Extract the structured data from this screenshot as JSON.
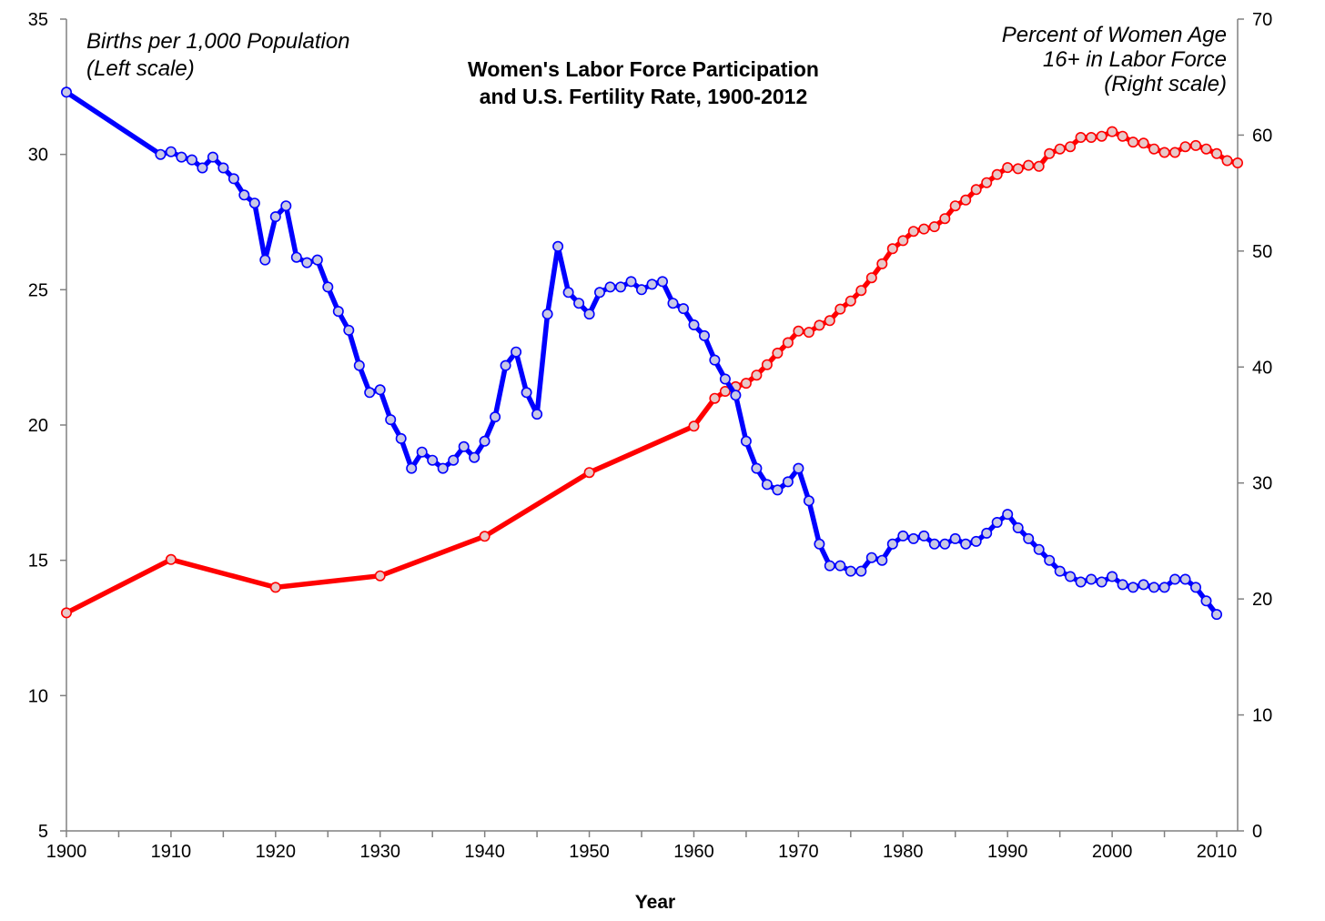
{
  "chart_data": {
    "type": "line",
    "title": "Women's Labor Force Participation\nand U.S. Fertility Rate, 1900-2012",
    "xlabel": "Year",
    "ylabel_left": "Births per 1,000 Population\n(Left scale)",
    "ylabel_right": "Percent of Women Age\n16+ in Labor Force\n(Right scale)",
    "xlim": [
      1900,
      2012
    ],
    "ylim_left": [
      5,
      35
    ],
    "ylim_right": [
      0,
      70
    ],
    "x_ticks": [
      1900,
      1910,
      1920,
      1930,
      1940,
      1950,
      1960,
      1970,
      1980,
      1990,
      2000,
      2010
    ],
    "y_left_ticks": [
      5,
      10,
      15,
      20,
      25,
      30,
      35
    ],
    "y_right_ticks": [
      0,
      10,
      20,
      30,
      40,
      50,
      60,
      70
    ],
    "grid": false,
    "series": [
      {
        "name": "Births per 1,000 Population",
        "axis": "left",
        "color": "#0000ff",
        "marker_fill": "#c8c8e6",
        "x": [
          1900,
          1909,
          1910,
          1911,
          1912,
          1913,
          1914,
          1915,
          1916,
          1917,
          1918,
          1919,
          1920,
          1921,
          1922,
          1923,
          1924,
          1925,
          1926,
          1927,
          1928,
          1929,
          1930,
          1931,
          1932,
          1933,
          1934,
          1935,
          1936,
          1937,
          1938,
          1939,
          1940,
          1941,
          1942,
          1943,
          1944,
          1945,
          1946,
          1947,
          1948,
          1949,
          1950,
          1951,
          1952,
          1953,
          1954,
          1955,
          1956,
          1957,
          1958,
          1959,
          1960,
          1961,
          1962,
          1963,
          1964,
          1965,
          1966,
          1967,
          1968,
          1969,
          1970,
          1971,
          1972,
          1973,
          1974,
          1975,
          1976,
          1977,
          1978,
          1979,
          1980,
          1981,
          1982,
          1983,
          1984,
          1985,
          1986,
          1987,
          1988,
          1989,
          1990,
          1991,
          1992,
          1993,
          1994,
          1995,
          1996,
          1997,
          1998,
          1999,
          2000,
          2001,
          2002,
          2003,
          2004,
          2005,
          2006,
          2007,
          2008,
          2009,
          2010
        ],
        "values": [
          32.3,
          30.0,
          30.1,
          29.9,
          29.8,
          29.5,
          29.9,
          29.5,
          29.1,
          28.5,
          28.2,
          26.1,
          27.7,
          28.1,
          26.2,
          26.0,
          26.1,
          25.1,
          24.2,
          23.5,
          22.2,
          21.2,
          21.3,
          20.2,
          19.5,
          18.4,
          19.0,
          18.7,
          18.4,
          18.7,
          19.2,
          18.8,
          19.4,
          20.3,
          22.2,
          22.7,
          21.2,
          20.4,
          24.1,
          26.6,
          24.9,
          24.5,
          24.1,
          24.9,
          25.1,
          25.1,
          25.3,
          25.0,
          25.2,
          25.3,
          24.5,
          24.3,
          23.7,
          23.3,
          22.4,
          21.7,
          21.1,
          19.4,
          18.4,
          17.8,
          17.6,
          17.9,
          18.4,
          17.2,
          15.6,
          14.8,
          14.8,
          14.6,
          14.6,
          15.1,
          15.0,
          15.6,
          15.9,
          15.8,
          15.9,
          15.6,
          15.6,
          15.8,
          15.6,
          15.7,
          16.0,
          16.4,
          16.7,
          16.2,
          15.8,
          15.4,
          15.0,
          14.6,
          14.4,
          14.2,
          14.3,
          14.2,
          14.4,
          14.1,
          14.0,
          14.1,
          14.0,
          14.0,
          14.3,
          14.3,
          14.0,
          13.5,
          13.0
        ]
      },
      {
        "name": "Percent of Women Age 16+ in Labor Force",
        "axis": "right",
        "color": "#ff0000",
        "marker_fill": "#e8c8c8",
        "x": [
          1900,
          1910,
          1920,
          1930,
          1940,
          1950,
          1960,
          1962,
          1963,
          1964,
          1965,
          1966,
          1967,
          1968,
          1969,
          1970,
          1971,
          1972,
          1973,
          1974,
          1975,
          1976,
          1977,
          1978,
          1979,
          1980,
          1981,
          1982,
          1983,
          1984,
          1985,
          1986,
          1987,
          1988,
          1989,
          1990,
          1991,
          1992,
          1993,
          1994,
          1995,
          1996,
          1997,
          1998,
          1999,
          2000,
          2001,
          2002,
          2003,
          2004,
          2005,
          2006,
          2007,
          2008,
          2009,
          2010,
          2011,
          2012
        ],
        "values": [
          18.8,
          23.4,
          21.0,
          22.0,
          25.4,
          30.9,
          34.9,
          37.3,
          37.9,
          38.3,
          38.6,
          39.3,
          40.2,
          41.2,
          42.1,
          43.1,
          43.0,
          43.6,
          44.0,
          45.0,
          45.7,
          46.6,
          47.7,
          48.9,
          50.2,
          50.9,
          51.7,
          51.9,
          52.1,
          52.8,
          53.9,
          54.4,
          55.3,
          55.9,
          56.6,
          57.2,
          57.1,
          57.4,
          57.3,
          58.4,
          58.8,
          59.0,
          59.8,
          59.8,
          59.9,
          60.3,
          59.9,
          59.4,
          59.3,
          58.8,
          58.5,
          58.5,
          59.0,
          59.1,
          58.8,
          58.4,
          57.8,
          57.6
        ]
      }
    ]
  }
}
